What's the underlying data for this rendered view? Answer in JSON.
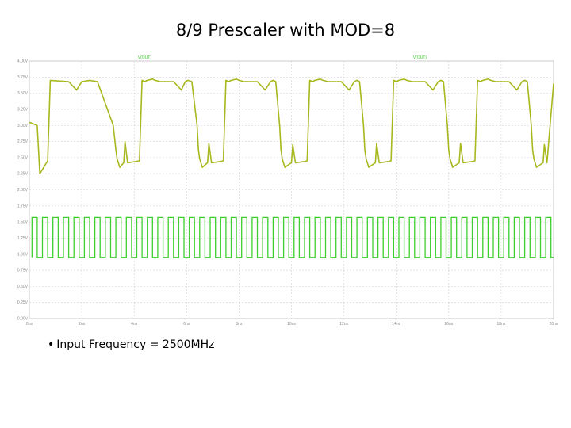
{
  "slide": {
    "title": "8/9 Prescaler with MOD=8",
    "bullet_marker": "•",
    "bullet": "Input Frequency = 2500MHz"
  },
  "chart_data": {
    "type": "line",
    "title": "8/9 Prescaler with MOD=8",
    "xlabel": "",
    "ylabel": "",
    "xlim": [
      0,
      20
    ],
    "ylim": [
      0.0,
      4.0
    ],
    "grid": true,
    "legend": "none",
    "y_ticks": [
      "0.00V",
      "0.25V",
      "0.50V",
      "0.75V",
      "1.00V",
      "1.25V",
      "1.50V",
      "1.75V",
      "2.00V",
      "2.25V",
      "2.50V",
      "2.75V",
      "3.00V",
      "3.25V",
      "3.50V",
      "3.75V",
      "4.00V"
    ],
    "y_tick_values": [
      0.0,
      0.25,
      0.5,
      0.75,
      1.0,
      1.25,
      1.5,
      1.75,
      2.0,
      2.25,
      2.5,
      2.75,
      3.0,
      3.25,
      3.5,
      3.75,
      4.0
    ],
    "x_ticks": [
      "0ns",
      "2ns",
      "4ns",
      "6ns",
      "8ns",
      "10ns",
      "12ns",
      "14ns",
      "16ns",
      "18ns",
      "20ns"
    ],
    "x_tick_values": [
      0,
      2,
      4,
      6,
      8,
      10,
      12,
      14,
      16,
      18,
      20
    ],
    "trace_labels": [
      "V(OUT)",
      "V(OUT)"
    ],
    "trace_label_x": [
      4.4,
      14.9
    ],
    "series": [
      {
        "color": "#a8b81e",
        "x": [
          0,
          0.3,
          0.4,
          0.55,
          0.7,
          0.8,
          1.5,
          1.8,
          2.0,
          2.3,
          2.6,
          3.2,
          3.3,
          3.35,
          3.45,
          3.6,
          3.65,
          3.75,
          4.05,
          4.2,
          4.3,
          4.4,
          4.5,
          4.7,
          4.8,
          5.0,
          5.5,
          5.8,
          5.95,
          6.05,
          6.2,
          6.4,
          6.45,
          6.5,
          6.6,
          6.8,
          6.85,
          6.95,
          7.3,
          7.4,
          7.5,
          7.6,
          7.7,
          7.9,
          8.0,
          8.2,
          8.7,
          9.0,
          9.2,
          9.3,
          9.4,
          9.55,
          9.6,
          9.65,
          9.75,
          10.0,
          10.05,
          10.15,
          10.5,
          10.6,
          10.7,
          10.8,
          10.9,
          11.1,
          11.2,
          11.4,
          11.9,
          12.2,
          12.4,
          12.5,
          12.6,
          12.75,
          12.8,
          12.85,
          12.95,
          13.2,
          13.25,
          13.35,
          13.7,
          13.8,
          13.9,
          14.0,
          14.1,
          14.3,
          14.4,
          14.6,
          15.1,
          15.4,
          15.6,
          15.7,
          15.8,
          15.95,
          16.0,
          16.05,
          16.15,
          16.4,
          16.45,
          16.55,
          16.9,
          17.0,
          17.1,
          17.2,
          17.3,
          17.5,
          17.6,
          17.8,
          18.3,
          18.6,
          18.8,
          18.9,
          19.0,
          19.15,
          19.2,
          19.25,
          19.35,
          19.6,
          19.65,
          19.75,
          20.0
        ],
        "y": [
          3.05,
          3.0,
          2.25,
          2.35,
          2.45,
          3.7,
          3.68,
          3.55,
          3.68,
          3.7,
          3.68,
          3.0,
          2.62,
          2.48,
          2.35,
          2.42,
          2.75,
          2.42,
          2.44,
          2.45,
          3.7,
          3.68,
          3.7,
          3.72,
          3.7,
          3.68,
          3.68,
          3.55,
          3.68,
          3.7,
          3.68,
          3.0,
          2.62,
          2.48,
          2.35,
          2.42,
          2.72,
          2.42,
          2.44,
          2.45,
          3.7,
          3.68,
          3.7,
          3.72,
          3.7,
          3.68,
          3.68,
          3.55,
          3.68,
          3.7,
          3.68,
          3.0,
          2.62,
          2.48,
          2.35,
          2.42,
          2.7,
          2.42,
          2.44,
          2.45,
          3.7,
          3.68,
          3.7,
          3.72,
          3.7,
          3.68,
          3.68,
          3.55,
          3.68,
          3.7,
          3.68,
          3.0,
          2.62,
          2.48,
          2.35,
          2.42,
          2.72,
          2.42,
          2.44,
          2.45,
          3.7,
          3.68,
          3.7,
          3.72,
          3.7,
          3.68,
          3.68,
          3.55,
          3.68,
          3.7,
          3.68,
          3.0,
          2.62,
          2.48,
          2.35,
          2.42,
          2.72,
          2.42,
          2.44,
          2.45,
          3.7,
          3.68,
          3.7,
          3.72,
          3.7,
          3.68,
          3.68,
          3.55,
          3.68,
          3.7,
          3.68,
          3.0,
          2.62,
          2.48,
          2.35,
          2.42,
          2.7,
          2.42,
          3.65
        ]
      },
      {
        "color": "#3ecf2e",
        "period_ns": 0.4,
        "duty": 0.5,
        "low": 0.95,
        "high": 1.57,
        "start_ns": 0.1,
        "stop_ns": 20
      }
    ]
  }
}
